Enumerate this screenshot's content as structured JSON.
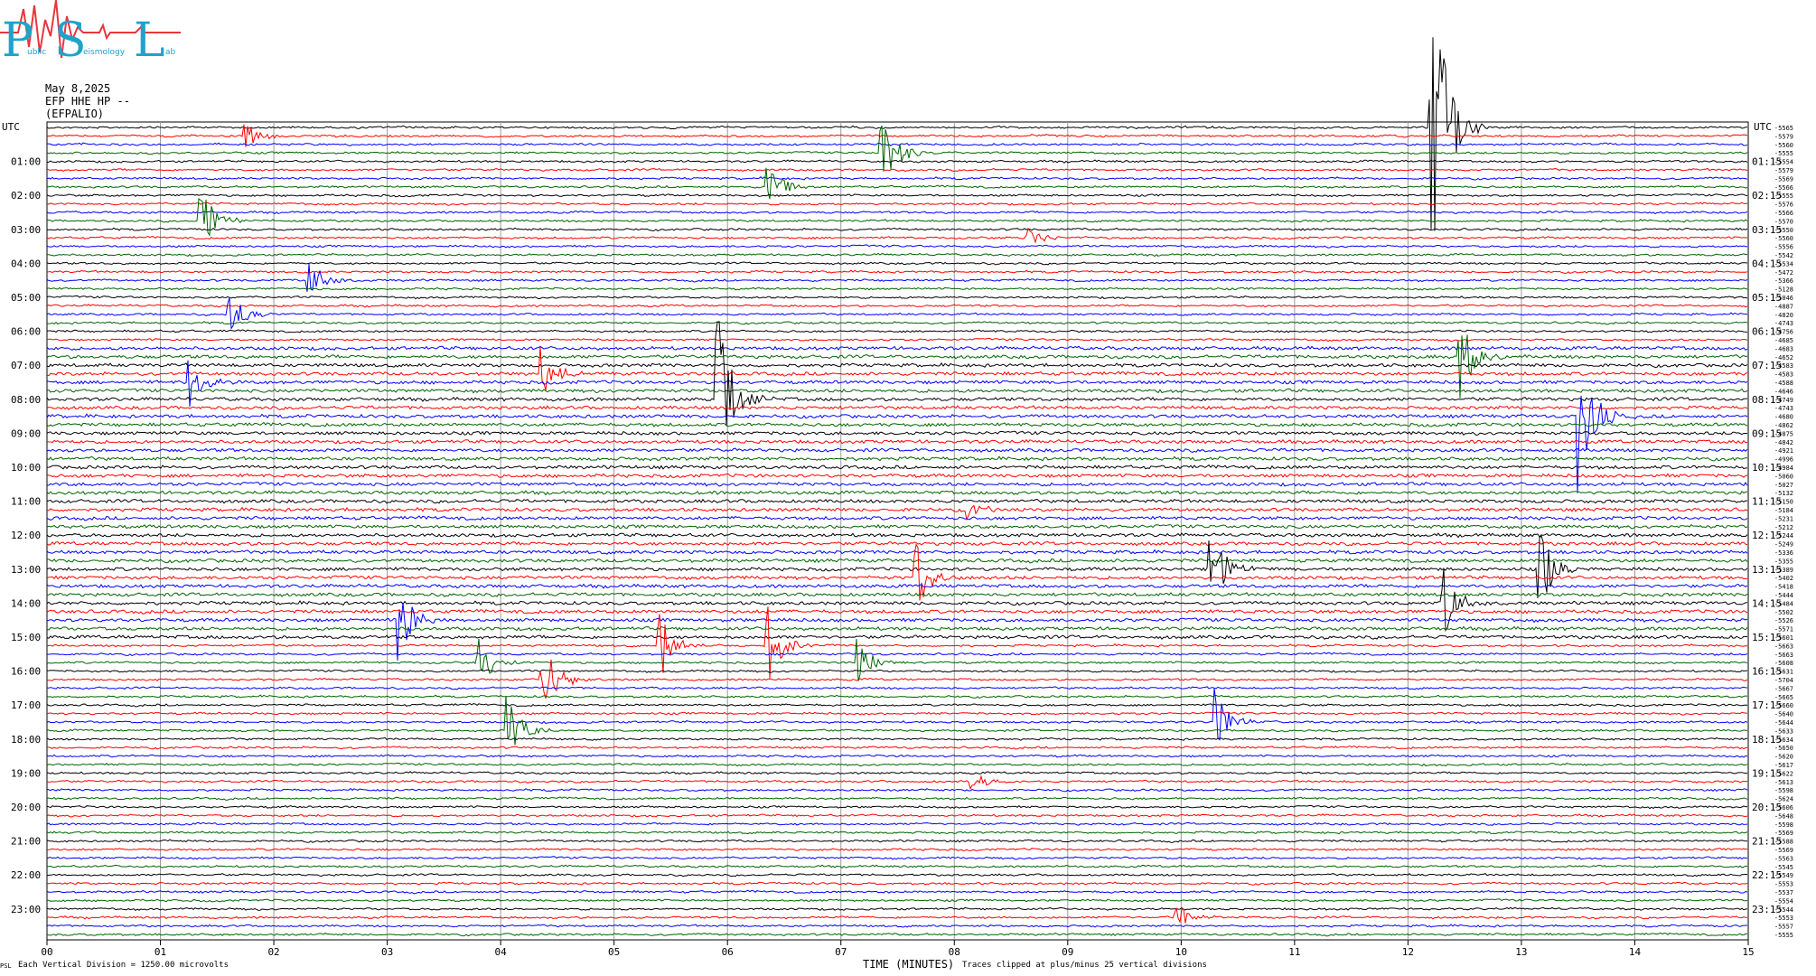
{
  "logo": {
    "letters": [
      "P",
      "S",
      "L"
    ],
    "small_text": [
      "ublic",
      "eismology",
      "ab"
    ],
    "colors": {
      "letters": "#1fa3c9",
      "wave": "#e8363d"
    }
  },
  "header": {
    "date": "May 8,2025",
    "channel": "EFP HHE HP --",
    "station": "(EFPALIO)"
  },
  "footer": {
    "corner_mark": "PSL",
    "scale_note": "Each Vertical Division = 1250.00 microvolts",
    "clip_note": "Traces clipped at plus/minus 25 vertical divisions",
    "x_axis_label": "TIME (MINUTES)"
  },
  "chart_data": {
    "type": "line",
    "title": "",
    "xlabel": "TIME (MINUTES)",
    "ylabel": "",
    "x_ticks": [
      "00",
      "01",
      "02",
      "03",
      "04",
      "05",
      "06",
      "07",
      "08",
      "09",
      "10",
      "11",
      "12",
      "13",
      "14",
      "15"
    ],
    "xlim": [
      0,
      15
    ],
    "left_axis_label": "UTC",
    "right_axis_label": "UTC",
    "left_hour_labels": [
      "01:00",
      "02:00",
      "03:00",
      "04:00",
      "05:00",
      "06:00",
      "07:00",
      "08:00",
      "09:00",
      "10:00",
      "11:00",
      "12:00",
      "13:00",
      "14:00",
      "15:00",
      "16:00",
      "17:00",
      "18:00",
      "19:00",
      "20:00",
      "21:00",
      "22:00",
      "23:00"
    ],
    "right_hour_labels": [
      "01:15",
      "02:15",
      "03:15",
      "04:15",
      "05:15",
      "06:15",
      "07:15",
      "08:15",
      "09:15",
      "10:15",
      "11:15",
      "12:15",
      "13:15",
      "14:15",
      "15:15",
      "16:15",
      "17:15",
      "18:15",
      "19:15",
      "20:15",
      "21:15",
      "22:15",
      "23:15"
    ],
    "trace_colors": [
      "#000000",
      "#ff0000",
      "#0000ff",
      "#006400"
    ],
    "trace_count": 96,
    "trace_offsets": [
      "-5565",
      "-5579",
      "-5560",
      "-5555",
      "-5554",
      "-5579",
      "-5569",
      "-5566",
      "-5555",
      "-5576",
      "-5566",
      "-5570",
      "-5550",
      "-5560",
      "-5556",
      "-5542",
      "-5534",
      "-5472",
      "-5366",
      "-5128",
      "-5046",
      "-4887",
      "-4820",
      "-4743",
      "-4756",
      "-4685",
      "-4683",
      "-4652",
      "-4583",
      "-4583",
      "-4588",
      "-4646",
      "-4749",
      "-4743",
      "-4680",
      "-4862",
      "-4875",
      "-4842",
      "-4921",
      "-4996",
      "-4984",
      "-5060",
      "-5027",
      "-5132",
      "-5150",
      "-5184",
      "-5231",
      "-5212",
      "-5244",
      "-5249",
      "-5336",
      "-5355",
      "-5389",
      "-5402",
      "-5418",
      "-5444",
      "-5484",
      "-5502",
      "-5526",
      "-5571",
      "-5601",
      "-5663",
      "-5663",
      "-5608",
      "-5631",
      "-5704",
      "-5667",
      "-5665",
      "-5660",
      "-5640",
      "-5644",
      "-5633",
      "-5634",
      "-5650",
      "-5620",
      "-5617",
      "-5622",
      "-5613",
      "-5598",
      "-5624",
      "-5606",
      "-5648",
      "-5598",
      "-5569",
      "-5588",
      "-5569",
      "-5563",
      "-5545",
      "-5549",
      "-5553",
      "-5537",
      "-5554",
      "-5544",
      "-5553",
      "-5557",
      "-5555"
    ],
    "events": [
      {
        "trace": 0,
        "minute": 12.2,
        "amplitude": 25
      },
      {
        "trace": 1,
        "minute": 1.75,
        "amplitude": 1.5
      },
      {
        "trace": 3,
        "minute": 7.35,
        "amplitude": 6
      },
      {
        "trace": 7,
        "minute": 6.35,
        "amplitude": 3
      },
      {
        "trace": 11,
        "minute": 1.35,
        "amplitude": 5
      },
      {
        "trace": 13,
        "minute": 8.65,
        "amplitude": 1.5
      },
      {
        "trace": 18,
        "minute": 2.3,
        "amplitude": 3
      },
      {
        "trace": 22,
        "minute": 1.6,
        "amplitude": 3
      },
      {
        "trace": 27,
        "minute": 12.45,
        "amplitude": 6
      },
      {
        "trace": 29,
        "minute": 4.35,
        "amplitude": 3.5
      },
      {
        "trace": 30,
        "minute": 1.25,
        "amplitude": 3.5
      },
      {
        "trace": 32,
        "minute": 5.9,
        "amplitude": 12
      },
      {
        "trace": 34,
        "minute": 13.5,
        "amplitude": 9
      },
      {
        "trace": 45,
        "minute": 8.1,
        "amplitude": 1.5
      },
      {
        "trace": 52,
        "minute": 10.25,
        "amplitude": 6
      },
      {
        "trace": 52,
        "minute": 13.15,
        "amplitude": 6
      },
      {
        "trace": 53,
        "minute": 7.65,
        "amplitude": 5
      },
      {
        "trace": 56,
        "minute": 12.3,
        "amplitude": 5
      },
      {
        "trace": 58,
        "minute": 3.1,
        "amplitude": 5
      },
      {
        "trace": 61,
        "minute": 5.4,
        "amplitude": 5
      },
      {
        "trace": 61,
        "minute": 6.35,
        "amplitude": 5
      },
      {
        "trace": 63,
        "minute": 3.8,
        "amplitude": 3.5
      },
      {
        "trace": 63,
        "minute": 7.15,
        "amplitude": 3.5
      },
      {
        "trace": 65,
        "minute": 4.35,
        "amplitude": 6
      },
      {
        "trace": 71,
        "minute": 4.05,
        "amplitude": 5
      },
      {
        "trace": 70,
        "minute": 10.3,
        "amplitude": 4
      },
      {
        "trace": 77,
        "minute": 8.15,
        "amplitude": 1.5
      },
      {
        "trace": 93,
        "minute": 9.95,
        "amplitude": 2
      }
    ]
  }
}
